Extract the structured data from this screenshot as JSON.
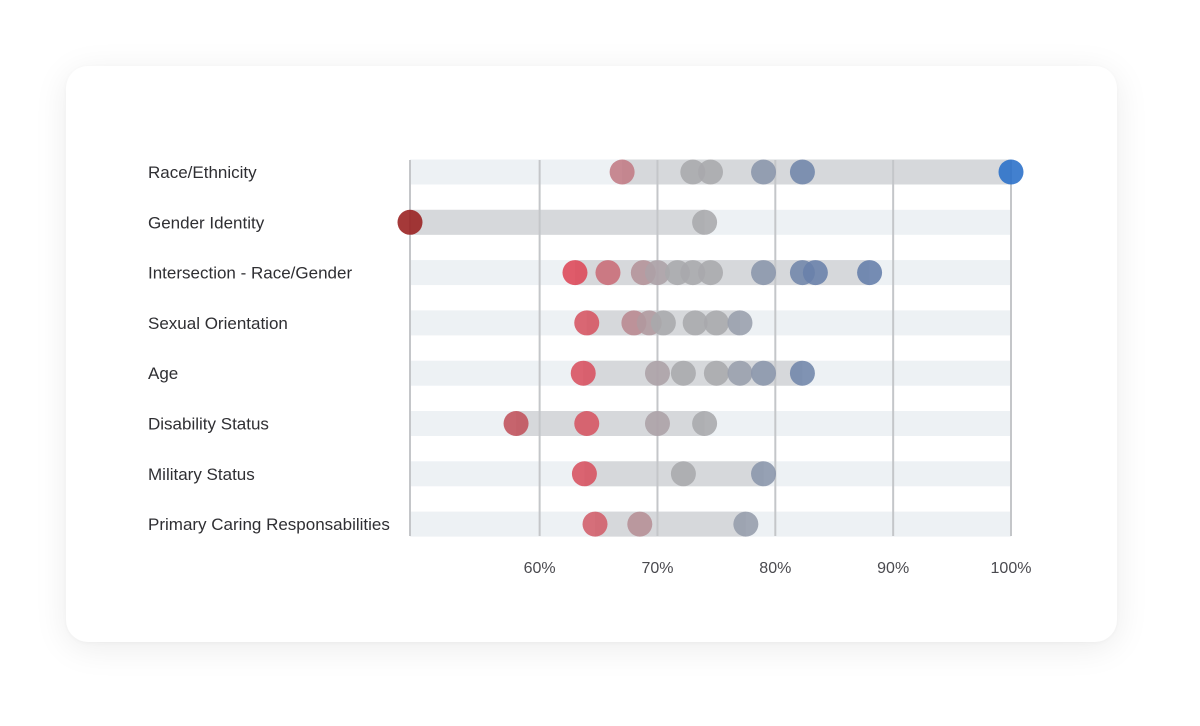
{
  "chart_data": {
    "type": "dot-range",
    "title": "",
    "xlabel": "",
    "ylabel": "",
    "xlim": [
      49,
      100
    ],
    "ticks": [
      {
        "value": 60,
        "label": "60%"
      },
      {
        "value": 70,
        "label": "70%"
      },
      {
        "value": 80,
        "label": "80%"
      },
      {
        "value": 90,
        "label": "90%"
      },
      {
        "value": 100,
        "label": "100%"
      }
    ],
    "grid": true,
    "categories": [
      {
        "label": "Race/Ethnicity",
        "values": [
          67,
          73,
          74.5,
          79,
          82.3,
          100
        ]
      },
      {
        "label": "Gender Identity",
        "values": [
          49,
          74
        ]
      },
      {
        "label": "Intersection - Race/Gender",
        "values": [
          63,
          65.8,
          68.8,
          70,
          71.7,
          73,
          74.5,
          79,
          82.3,
          83.4,
          88
        ]
      },
      {
        "label": "Sexual Orientation",
        "values": [
          64,
          68,
          69.3,
          70.5,
          73.2,
          75,
          77
        ]
      },
      {
        "label": "Age",
        "values": [
          63.7,
          70,
          72.2,
          75,
          77,
          79,
          82.3
        ]
      },
      {
        "label": "Disability Status",
        "values": [
          58,
          64,
          70,
          74
        ]
      },
      {
        "label": "Military Status",
        "values": [
          63.8,
          72.2,
          79
        ]
      },
      {
        "label": "Primary Caring Responsabilities",
        "values": [
          64.7,
          68.5,
          77.5
        ]
      }
    ]
  }
}
